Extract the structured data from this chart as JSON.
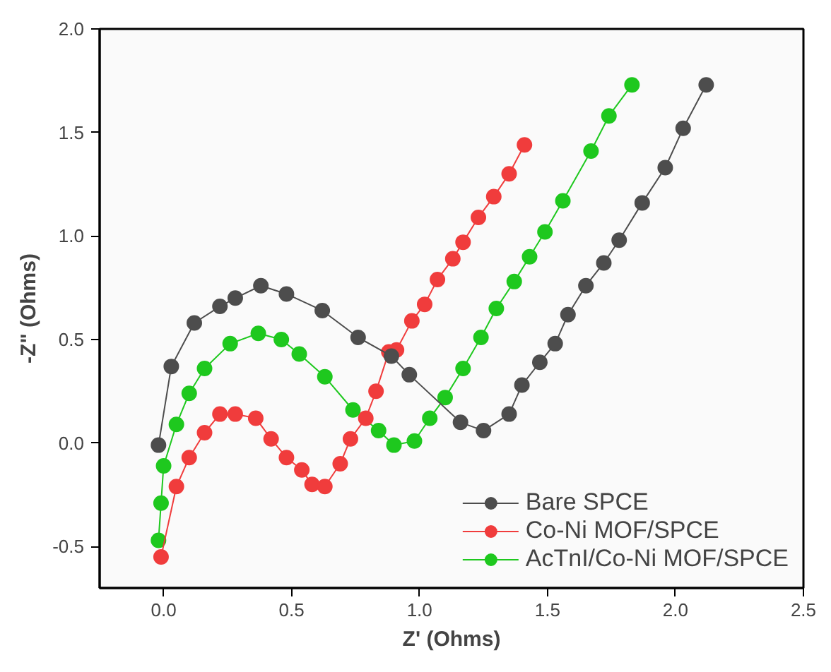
{
  "chart_data": {
    "type": "line",
    "xlabel": "Z' (Ohms)",
    "ylabel": "-Z\" (Ohms)",
    "xlim": [
      -0.25,
      2.5
    ],
    "ylim": [
      -0.7,
      2.0
    ],
    "xticks": [
      {
        "value": 0,
        "label": "0.0"
      },
      0.5,
      {
        "value": 1,
        "label": "1.0"
      },
      1.5,
      {
        "value": 2,
        "label": "2.0"
      },
      2.5
    ],
    "yticks": [
      -0.5,
      {
        "value": 0,
        "label": "0.0"
      },
      0.5,
      {
        "value": 1,
        "label": "1.0"
      },
      1.5,
      {
        "value": 2,
        "label": "2.0"
      }
    ],
    "grid": false,
    "legend": "bottom right",
    "marker": "circle",
    "line_style": "solid",
    "series": [
      {
        "name": "Bare SPCE",
        "color": "#4d4d4d",
        "x": [
          -0.02,
          0.03,
          0.12,
          0.22,
          0.28,
          0.38,
          0.48,
          0.62,
          0.76,
          0.89,
          0.96,
          1.16,
          1.25,
          1.35,
          1.4,
          1.47,
          1.53,
          1.58,
          1.65,
          1.72,
          1.78,
          1.87,
          1.96,
          2.03,
          2.12
        ],
        "values": [
          -0.01,
          0.37,
          0.58,
          0.66,
          0.7,
          0.76,
          0.72,
          0.64,
          0.51,
          0.42,
          0.33,
          0.1,
          0.06,
          0.14,
          0.28,
          0.39,
          0.48,
          0.62,
          0.76,
          0.87,
          0.98,
          1.16,
          1.33,
          1.52,
          1.73
        ]
      },
      {
        "name": "Co-Ni MOF/SPCE",
        "color": "#f03c3c",
        "x": [
          -0.01,
          0.05,
          0.1,
          0.16,
          0.22,
          0.28,
          0.36,
          0.42,
          0.48,
          0.54,
          0.58,
          0.63,
          0.69,
          0.73,
          0.79,
          0.83,
          0.88,
          0.91,
          0.97,
          1.02,
          1.07,
          1.13,
          1.17,
          1.23,
          1.29,
          1.35,
          1.41
        ],
        "values": [
          -0.55,
          -0.21,
          -0.07,
          0.05,
          0.14,
          0.14,
          0.12,
          0.02,
          -0.07,
          -0.13,
          -0.2,
          -0.21,
          -0.1,
          0.02,
          0.12,
          0.25,
          0.44,
          0.45,
          0.59,
          0.67,
          0.79,
          0.89,
          0.97,
          1.09,
          1.19,
          1.3,
          1.44
        ]
      },
      {
        "name": "AcTnI/Co-Ni MOF/SPCE",
        "color": "#1ec81e",
        "x": [
          -0.02,
          -0.01,
          0.0,
          0.05,
          0.1,
          0.16,
          0.26,
          0.37,
          0.46,
          0.53,
          0.63,
          0.74,
          0.84,
          0.9,
          0.98,
          1.04,
          1.1,
          1.17,
          1.24,
          1.3,
          1.37,
          1.43,
          1.49,
          1.56,
          1.67,
          1.74,
          1.83
        ],
        "values": [
          -0.47,
          -0.29,
          -0.11,
          0.09,
          0.24,
          0.36,
          0.48,
          0.53,
          0.5,
          0.43,
          0.32,
          0.16,
          0.06,
          -0.01,
          0.01,
          0.12,
          0.22,
          0.36,
          0.51,
          0.65,
          0.78,
          0.9,
          1.02,
          1.17,
          1.41,
          1.58,
          1.73
        ]
      }
    ]
  }
}
